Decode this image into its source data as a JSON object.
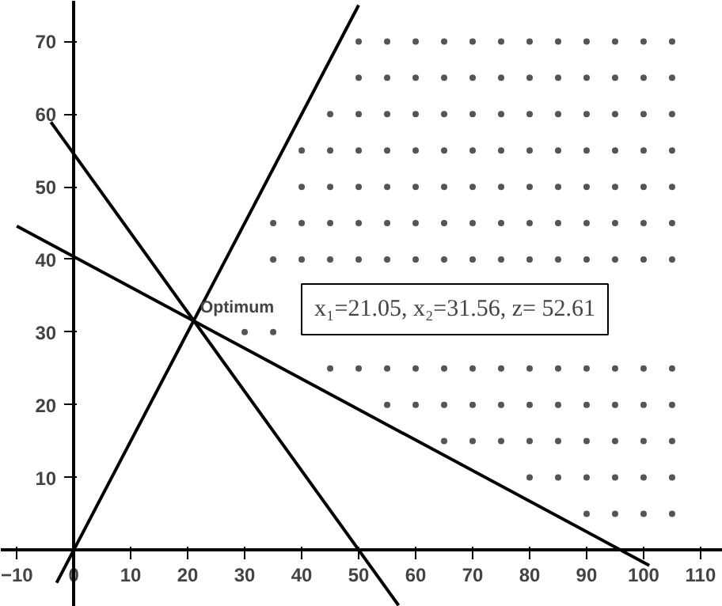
{
  "chart_data": {
    "type": "line",
    "xlim": [
      -12.8,
      113.9
    ],
    "ylim": [
      -7.8,
      75.6
    ],
    "xticks": [
      -10,
      0,
      10,
      20,
      30,
      40,
      50,
      60,
      70,
      80,
      90,
      100,
      110
    ],
    "yticks": [
      10,
      20,
      30,
      40,
      50,
      60,
      70
    ],
    "grid": false,
    "series": [
      {
        "color": "#000000",
        "x": [
          -3,
          50
        ],
        "values": [
          -4.5,
          75
        ]
      },
      {
        "color": "#000000",
        "x": [
          -4,
          57
        ],
        "values": [
          58.9,
          -7.6
        ]
      },
      {
        "color": "#000000",
        "x": [
          -10,
          101
        ],
        "values": [
          44.6,
          -2.1
        ]
      },
      {
        "type": "scatter",
        "color": "#555555",
        "x": [
          50,
          55,
          60,
          65,
          70,
          75,
          80,
          85,
          90,
          95,
          100,
          105
        ],
        "values": [
          70,
          70,
          70,
          70,
          70,
          70,
          70,
          70,
          70,
          70,
          70,
          70
        ]
      },
      {
        "type": "scatter",
        "color": "#555555",
        "x": [
          50,
          55,
          60,
          65,
          70,
          75,
          80,
          85,
          90,
          95,
          100,
          105
        ],
        "values": [
          65,
          65,
          65,
          65,
          65,
          65,
          65,
          65,
          65,
          65,
          65,
          65
        ]
      },
      {
        "type": "scatter",
        "color": "#555555",
        "x": [
          45,
          50,
          55,
          60,
          65,
          70,
          75,
          80,
          85,
          90,
          95,
          100,
          105
        ],
        "values": [
          60,
          60,
          60,
          60,
          60,
          60,
          60,
          60,
          60,
          60,
          60,
          60,
          60
        ]
      },
      {
        "type": "scatter",
        "color": "#555555",
        "x": [
          40,
          45,
          50,
          55,
          60,
          65,
          70,
          75,
          80,
          85,
          90,
          95,
          100,
          105
        ],
        "values": [
          55,
          55,
          55,
          55,
          55,
          55,
          55,
          55,
          55,
          55,
          55,
          55,
          55,
          55
        ]
      },
      {
        "type": "scatter",
        "color": "#555555",
        "x": [
          40,
          45,
          50,
          55,
          60,
          65,
          70,
          75,
          80,
          85,
          90,
          95,
          100,
          105
        ],
        "values": [
          50,
          50,
          50,
          50,
          50,
          50,
          50,
          50,
          50,
          50,
          50,
          50,
          50,
          50
        ]
      },
      {
        "type": "scatter",
        "color": "#555555",
        "x": [
          35,
          40,
          45,
          50,
          55,
          60,
          65,
          70,
          75,
          80,
          85,
          90,
          95,
          100,
          105
        ],
        "values": [
          45,
          45,
          45,
          45,
          45,
          45,
          45,
          45,
          45,
          45,
          45,
          45,
          45,
          45,
          45
        ]
      },
      {
        "type": "scatter",
        "color": "#555555",
        "x": [
          35,
          40,
          45,
          50,
          55,
          60,
          65,
          70,
          75,
          80,
          85,
          90,
          95,
          100,
          105
        ],
        "values": [
          40,
          40,
          40,
          40,
          40,
          40,
          40,
          40,
          40,
          40,
          40,
          40,
          40,
          40,
          40
        ]
      },
      {
        "type": "scatter",
        "color": "#555555",
        "x": [
          30,
          35
        ],
        "values": [
          30,
          30
        ]
      },
      {
        "type": "scatter",
        "color": "#555555",
        "x": [
          45,
          50,
          55,
          60,
          65,
          70,
          75,
          80,
          85,
          90,
          95,
          100,
          105
        ],
        "values": [
          25,
          25,
          25,
          25,
          25,
          25,
          25,
          25,
          25,
          25,
          25,
          25,
          25
        ]
      },
      {
        "type": "scatter",
        "color": "#555555",
        "x": [
          55,
          60,
          65,
          70,
          75,
          80,
          85,
          90,
          95,
          100,
          105
        ],
        "values": [
          20,
          20,
          20,
          20,
          20,
          20,
          20,
          20,
          20,
          20,
          20
        ]
      },
      {
        "type": "scatter",
        "color": "#555555",
        "x": [
          65,
          70,
          75,
          80,
          85,
          90,
          95,
          100,
          105
        ],
        "values": [
          15,
          15,
          15,
          15,
          15,
          15,
          15,
          15,
          15
        ]
      },
      {
        "type": "scatter",
        "color": "#555555",
        "x": [
          80,
          85,
          90,
          95,
          100,
          105
        ],
        "values": [
          10,
          10,
          10,
          10,
          10,
          10
        ]
      },
      {
        "type": "scatter",
        "color": "#555555",
        "x": [
          90,
          95,
          100,
          105
        ],
        "values": [
          5,
          5,
          5,
          5
        ]
      }
    ],
    "annotations": [
      {
        "text": "Optimum",
        "x": 21.05,
        "y": 31.56
      },
      "x₁=21.05, x₂=31.56, z= 52.61"
    ]
  }
}
